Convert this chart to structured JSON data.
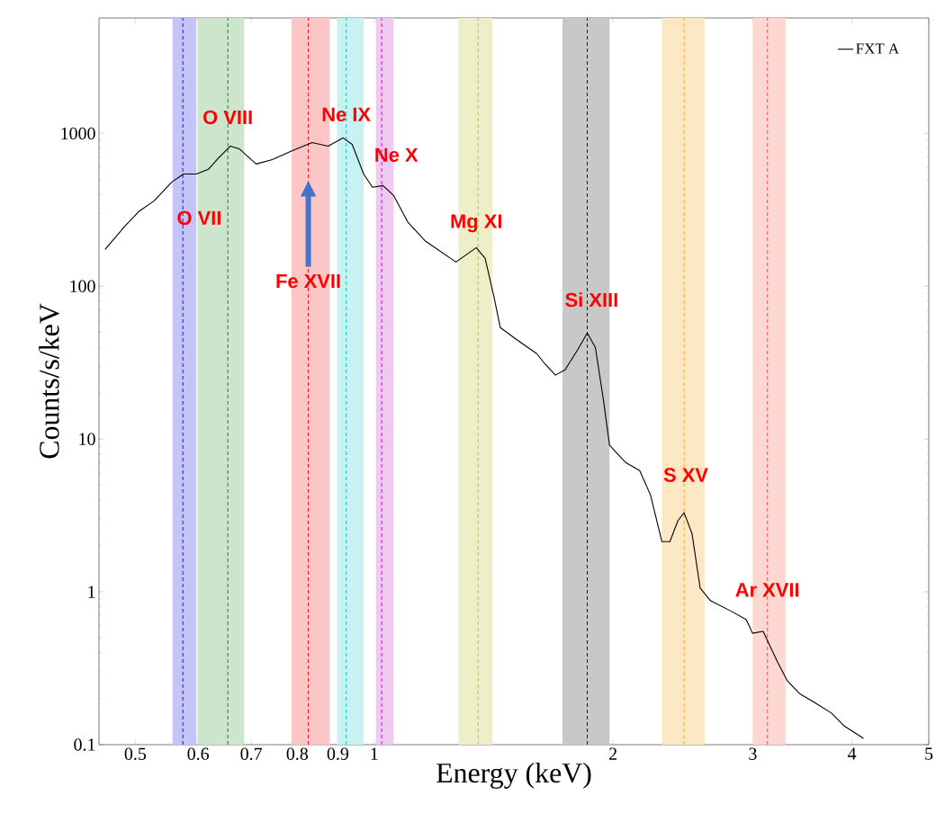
{
  "chart_data": {
    "type": "line",
    "xlabel": "Energy (keV)",
    "ylabel": "Counts/s/keV",
    "log": "xy",
    "xlim": [
      0.45,
      5
    ],
    "ylim": [
      0.1,
      5700
    ],
    "xticks": [
      0.5,
      0.6,
      0.7,
      0.8,
      0.9,
      1,
      2,
      3,
      4,
      5
    ],
    "yticks": [
      0.1,
      1,
      10,
      100,
      1000
    ],
    "legend": "top right",
    "marker": "none",
    "line_style": "solid",
    "grid": false,
    "series": [
      {
        "name": "FXT A",
        "color": "#000000",
        "x": [
          0.458,
          0.484,
          0.505,
          0.528,
          0.556,
          0.575,
          0.597,
          0.618,
          0.637,
          0.659,
          0.676,
          0.71,
          0.744,
          0.789,
          0.835,
          0.875,
          0.914,
          0.938,
          0.97,
          0.995,
          1.026,
          1.058,
          1.103,
          1.161,
          1.268,
          1.345,
          1.38,
          1.416,
          1.442,
          1.51,
          1.603,
          1.64,
          1.692,
          1.74,
          1.804,
          1.856,
          1.9,
          1.944,
          1.98,
          2.074,
          2.161,
          2.229,
          2.305,
          2.359,
          2.414,
          2.458,
          2.515,
          2.575,
          2.655,
          2.811,
          2.944,
          2.998,
          3.092,
          3.223,
          3.316,
          3.436,
          3.599,
          3.77,
          3.908,
          4.137
        ],
        "values": [
          174,
          244,
          308,
          362,
          481,
          543,
          543,
          582,
          693,
          827,
          794,
          631,
          675,
          773,
          873,
          827,
          935,
          849,
          543,
          444,
          456,
          393,
          262,
          197,
          144,
          179,
          152,
          84.9,
          53.6,
          45.0,
          36.2,
          31.2,
          26.2,
          28.4,
          38.2,
          49.4,
          39.8,
          18.4,
          9.1,
          7.03,
          6.22,
          4.32,
          2.13,
          2.13,
          2.92,
          3.3,
          2.41,
          1.06,
          0.873,
          0.752,
          0.658,
          0.536,
          0.551,
          0.348,
          0.262,
          0.216,
          0.187,
          0.161,
          0.133,
          0.11
        ]
      }
    ],
    "bands": [
      {
        "axis": "x",
        "from": 0.557,
        "to": 0.597,
        "color": "#c4c4f8"
      },
      {
        "axis": "x",
        "from": 0.599,
        "to": 0.686,
        "color": "#cde4cd"
      },
      {
        "axis": "x",
        "from": 0.787,
        "to": 0.879,
        "color": "#fdc6c6"
      },
      {
        "axis": "x",
        "from": 0.898,
        "to": 0.97,
        "color": "#c8f1f1"
      },
      {
        "axis": "x",
        "from": 1.005,
        "to": 1.058,
        "color": "#efc9ef"
      },
      {
        "axis": "x",
        "from": 1.277,
        "to": 1.409,
        "color": "#eeefc9"
      },
      {
        "axis": "x",
        "from": 1.727,
        "to": 1.98,
        "color": "#c8c8c8"
      },
      {
        "axis": "x",
        "from": 2.305,
        "to": 2.609,
        "color": "#fde8c6"
      },
      {
        "axis": "x",
        "from": 3.0,
        "to": 3.3,
        "color": "#fdd8d2"
      }
    ],
    "ref_lines": [
      {
        "axis": "x",
        "value": 0.574,
        "color": "#0000ff",
        "line_style": "dashed"
      },
      {
        "axis": "x",
        "value": 0.654,
        "color": "#008000",
        "line_style": "dashed"
      },
      {
        "axis": "x",
        "value": 0.826,
        "color": "#ff0000",
        "line_style": "dashed"
      },
      {
        "axis": "x",
        "value": 0.922,
        "color": "#00bfbf",
        "line_style": "dashed"
      },
      {
        "axis": "x",
        "value": 1.022,
        "color": "#bf00bf",
        "line_style": "dashed"
      },
      {
        "axis": "x",
        "value": 1.352,
        "color": "#bfbf00",
        "line_style": "dashed"
      },
      {
        "axis": "x",
        "value": 1.856,
        "color": "#000000",
        "line_style": "dashed"
      },
      {
        "axis": "x",
        "value": 2.458,
        "color": "#ffa500",
        "line_style": "dashed"
      },
      {
        "axis": "x",
        "value": 3.13,
        "color": "#ff4d4d",
        "line_style": "dashed"
      }
    ],
    "annotations": [
      {
        "text": "O VII",
        "x": 0.602,
        "y": 280
      },
      {
        "text": "O VIII",
        "x": 0.654,
        "y": 1276
      },
      {
        "text": "Ne IX",
        "x": 0.922,
        "y": 1330
      },
      {
        "text": "Ne X",
        "x": 1.066,
        "y": 723
      },
      {
        "text": "Fe XVII",
        "x": 0.826,
        "y": 108
      },
      {
        "text": "Mg XI",
        "x": 1.345,
        "y": 258
      },
      {
        "text": "Si XIII",
        "x": 1.88,
        "y": 81.7
      },
      {
        "text": "S XV",
        "x": 2.47,
        "y": 5.82
      },
      {
        "text": "Ar XVII",
        "x": 3.13,
        "y": 1.03
      }
    ]
  }
}
